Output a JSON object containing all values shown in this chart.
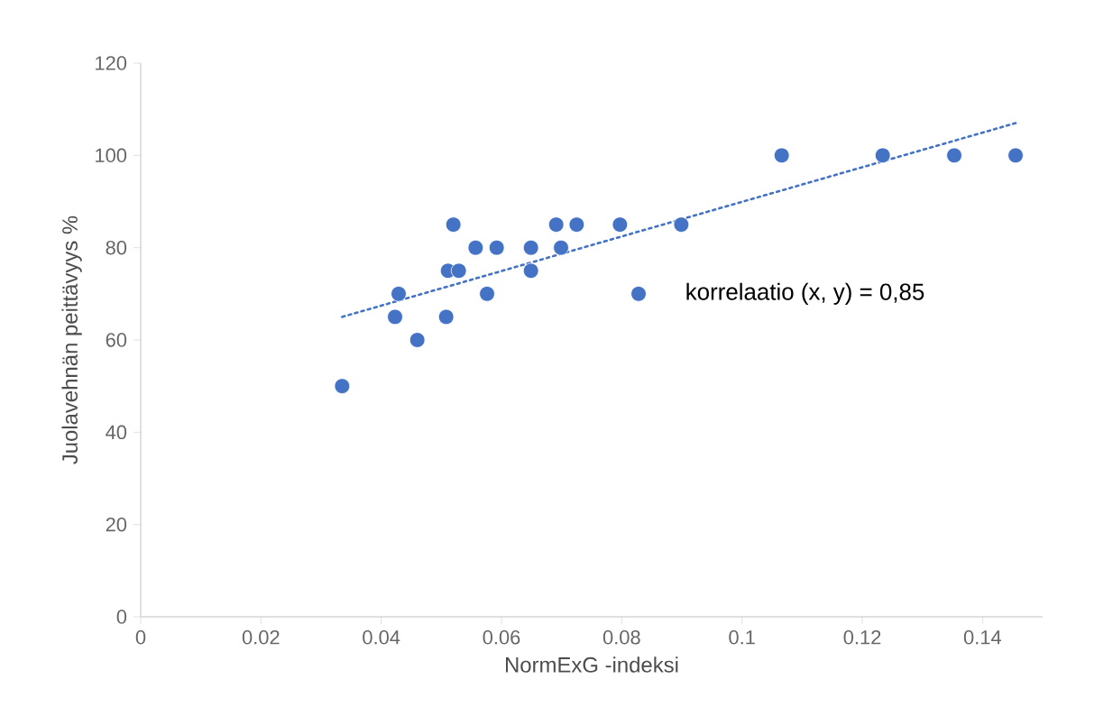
{
  "chart_data": {
    "type": "scatter",
    "xlabel": "NormExG -indeksi",
    "ylabel": "Juolavehnän peittävyys %",
    "xlim": [
      0,
      0.15
    ],
    "ylim": [
      0,
      120
    ],
    "xticks": [
      0,
      0.02,
      0.04,
      0.06,
      0.08,
      0.1,
      0.12,
      0.14
    ],
    "yticks": [
      0,
      20,
      40,
      60,
      80,
      100,
      120
    ],
    "grid": false,
    "annotations": [
      "korrelaatio (x, y) = 0,85"
    ],
    "series": [
      {
        "color": "#4472c4",
        "marker": "circle",
        "x": [
          0.0335,
          0.0423,
          0.0429,
          0.046,
          0.0508,
          0.0511,
          0.052,
          0.0529,
          0.0557,
          0.0576,
          0.0592,
          0.0649,
          0.0649,
          0.0691,
          0.0699,
          0.0725,
          0.0797,
          0.0828,
          0.0899,
          0.1066,
          0.1234,
          0.1353,
          0.1455
        ],
        "values": [
          50,
          65,
          70,
          60,
          65,
          75,
          85,
          75,
          80,
          70,
          80,
          80,
          75,
          85,
          80,
          85,
          85,
          70,
          85,
          100,
          100,
          100,
          100
        ]
      },
      {
        "type": "line",
        "color": "#4472c4",
        "line_style": "dotted",
        "marker": "none",
        "x": [
          0.0335,
          0.1455
        ],
        "values": [
          65,
          107
        ]
      }
    ]
  }
}
